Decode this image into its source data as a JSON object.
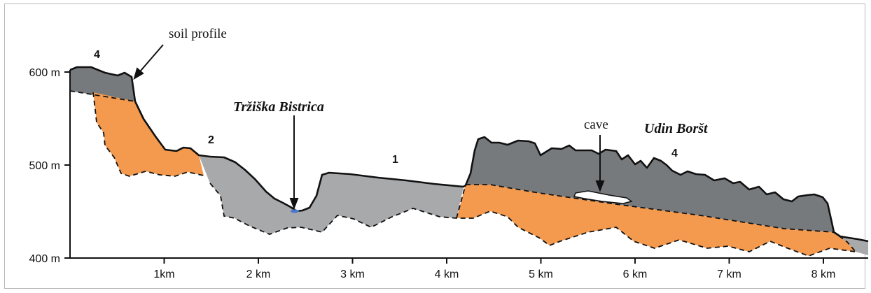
{
  "y_axis": {
    "unit": "m",
    "ticks": [
      {
        "value": 600,
        "label": "600 m"
      },
      {
        "value": 500,
        "label": "500 m"
      },
      {
        "value": 400,
        "label": "400 m"
      }
    ]
  },
  "x_axis": {
    "ticks": [
      {
        "value": 1,
        "label": "1km"
      },
      {
        "value": 2,
        "label": "2 km"
      },
      {
        "value": 3,
        "label": "3 km"
      },
      {
        "value": 4,
        "label": "4 km"
      },
      {
        "value": 5,
        "label": "5 km"
      },
      {
        "value": 6,
        "label": "6 km"
      },
      {
        "value": 7,
        "label": "7 km"
      },
      {
        "value": 8,
        "label": "8 km"
      }
    ]
  },
  "labels": {
    "soil_profile": "soil profile",
    "river": "Tržiška Bistrica",
    "cave": "cave",
    "ridge": "Udin Boršt",
    "unit_4_left": "4",
    "unit_2": "2",
    "unit_1": "1",
    "unit_4_right": "4"
  },
  "colors": {
    "unit_4": "#777a7d",
    "unit_1_2": "#a8a9ab",
    "orange_unit": "#f39a4f",
    "cave": "#ffffff",
    "river": "#4a78c8",
    "outline": "#111111"
  }
}
